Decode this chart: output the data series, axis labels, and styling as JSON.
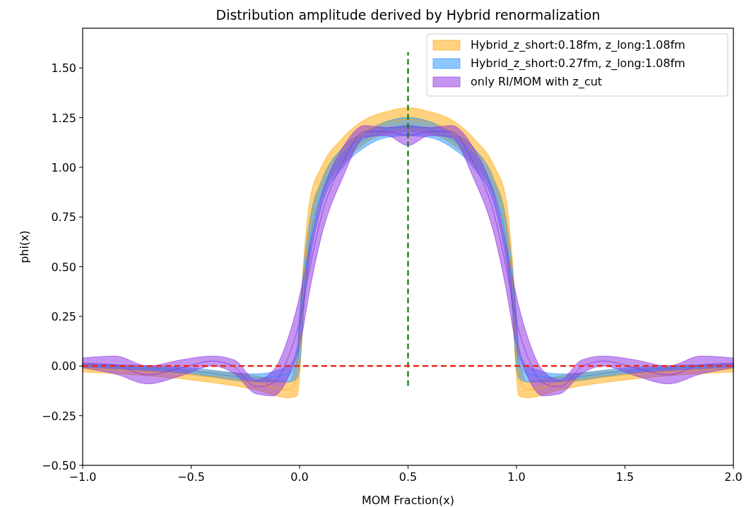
{
  "chart_data": {
    "type": "line",
    "title": "Distribution amplitude derived by Hybrid renormalization",
    "xlabel": "MOM Fraction(x)",
    "ylabel": "phi(x)",
    "xlim": [
      -1,
      2
    ],
    "ylim": [
      -0.5,
      1.7
    ],
    "xticks": [
      {
        "value": -1,
        "label": "−1.0"
      },
      {
        "value": -0.5,
        "label": "−0.5"
      },
      {
        "value": 0,
        "label": "0.0"
      },
      {
        "value": 0.5,
        "label": "0.5"
      },
      {
        "value": 1,
        "label": "1.0"
      },
      {
        "value": 1.5,
        "label": "1.5"
      },
      {
        "value": 2,
        "label": "2.0"
      }
    ],
    "yticks": [
      {
        "value": -0.5,
        "label": "−0.50"
      },
      {
        "value": -0.25,
        "label": "−0.25"
      },
      {
        "value": 0,
        "label": "0.00"
      },
      {
        "value": 0.25,
        "label": "0.25"
      },
      {
        "value": 0.5,
        "label": "0.50"
      },
      {
        "value": 0.75,
        "label": "0.75"
      },
      {
        "value": 1,
        "label": "1.00"
      },
      {
        "value": 1.25,
        "label": "1.25"
      },
      {
        "value": 1.5,
        "label": "1.50"
      }
    ],
    "legend": "top right",
    "grid": false,
    "ref_lines": [
      {
        "axis": "y",
        "value": 0,
        "color": "#f0281a",
        "line_style": "dashed"
      }
    ],
    "series": [
      {
        "name": "Hybrid_z_short:0.18fm, z_long:1.08fm",
        "color": "#ffa500",
        "x": [
          -1,
          -0.5,
          -0.2,
          -0.05,
          -0.01,
          0,
          0.02,
          0.05,
          0.1,
          0.2,
          0.3,
          0.4,
          0.5,
          0.6,
          0.7,
          0.8,
          0.9,
          0.95,
          0.98,
          1.0,
          1.01,
          1.05,
          1.2,
          1.5,
          2
        ],
        "values": [
          -0.01,
          -0.045,
          -0.085,
          -0.12,
          -0.05,
          0.075,
          0.425,
          0.725,
          0.925,
          1.085,
          1.18,
          1.225,
          1.24,
          1.225,
          1.18,
          1.085,
          0.925,
          0.725,
          0.425,
          0.075,
          -0.05,
          -0.12,
          -0.085,
          -0.045,
          -0.01
        ],
        "upper": [
          0.01,
          -0.02,
          -0.05,
          -0.08,
          0.05,
          0.2,
          0.55,
          0.85,
          1.0,
          1.15,
          1.24,
          1.28,
          1.3,
          1.28,
          1.24,
          1.15,
          1.0,
          0.85,
          0.55,
          0.2,
          0.05,
          -0.08,
          -0.05,
          -0.02,
          0.01
        ],
        "lower": [
          -0.03,
          -0.07,
          -0.12,
          -0.16,
          -0.15,
          -0.05,
          0.3,
          0.6,
          0.85,
          1.02,
          1.12,
          1.17,
          1.18,
          1.17,
          1.12,
          1.02,
          0.85,
          0.6,
          0.3,
          -0.05,
          -0.15,
          -0.16,
          -0.12,
          -0.07,
          -0.03
        ]
      },
      {
        "name": "Hybrid_z_short:0.27fm, z_long:1.08fm",
        "color": "#1e90ff",
        "x": [
          -1,
          -0.5,
          -0.2,
          -0.05,
          -0.01,
          0,
          0.02,
          0.05,
          0.1,
          0.2,
          0.3,
          0.4,
          0.5,
          0.6,
          0.7,
          0.8,
          0.9,
          0.95,
          0.98,
          1.0,
          1.01,
          1.05,
          1.2,
          1.5,
          2
        ],
        "values": [
          0,
          -0.025,
          -0.06,
          -0.04,
          0.02,
          0.125,
          0.4,
          0.65,
          0.865,
          1.05,
          1.14,
          1.19,
          1.205,
          1.19,
          1.14,
          1.05,
          0.865,
          0.65,
          0.4,
          0.125,
          0.02,
          -0.04,
          -0.06,
          -0.025,
          0
        ],
        "upper": [
          0.01,
          -0.01,
          -0.04,
          0.0,
          0.1,
          0.25,
          0.5,
          0.75,
          0.93,
          1.1,
          1.18,
          1.23,
          1.25,
          1.23,
          1.18,
          1.1,
          0.93,
          0.75,
          0.5,
          0.25,
          0.1,
          0.0,
          -0.04,
          -0.01,
          0.01
        ],
        "lower": [
          -0.01,
          -0.04,
          -0.08,
          -0.08,
          -0.06,
          0.0,
          0.3,
          0.55,
          0.8,
          1.0,
          1.1,
          1.15,
          1.16,
          1.15,
          1.1,
          1.0,
          0.8,
          0.55,
          0.3,
          0.0,
          -0.06,
          -0.08,
          -0.08,
          -0.04,
          -0.01
        ]
      },
      {
        "name": "only RI/MOM with z_cut",
        "color": "#8a2be2",
        "x": [
          -1,
          -0.85,
          -0.7,
          -0.55,
          -0.4,
          -0.3,
          -0.2,
          -0.12,
          -0.05,
          0,
          0.05,
          0.1,
          0.2,
          0.3,
          0.4,
          0.5,
          0.6,
          0.7,
          0.8,
          0.9,
          0.95,
          1.0,
          1.05,
          1.12,
          1.2,
          1.3,
          1.4,
          1.55,
          1.7,
          1.85,
          2
        ],
        "values": [
          0.015,
          0.005,
          -0.045,
          -0.01,
          0.025,
          -0.005,
          -0.105,
          -0.085,
          0.05,
          0.225,
          0.51,
          0.75,
          1.025,
          1.18,
          1.18,
          1.16,
          1.18,
          1.18,
          1.025,
          0.75,
          0.51,
          0.225,
          0.05,
          -0.085,
          -0.105,
          -0.005,
          0.025,
          -0.01,
          -0.045,
          0.005,
          0.015
        ],
        "upper": [
          0.04,
          0.05,
          0.0,
          0.03,
          0.05,
          0.03,
          -0.07,
          -0.02,
          0.15,
          0.35,
          0.62,
          0.85,
          1.1,
          1.21,
          1.2,
          1.21,
          1.2,
          1.21,
          1.1,
          0.85,
          0.62,
          0.35,
          0.15,
          -0.02,
          -0.07,
          0.03,
          0.05,
          0.03,
          0.0,
          0.05,
          0.04
        ],
        "lower": [
          -0.01,
          -0.04,
          -0.09,
          -0.05,
          0.0,
          -0.04,
          -0.14,
          -0.15,
          -0.05,
          0.1,
          0.4,
          0.65,
          0.95,
          1.15,
          1.16,
          1.11,
          1.16,
          1.15,
          0.95,
          0.65,
          0.4,
          0.1,
          -0.05,
          -0.15,
          -0.14,
          -0.04,
          0.0,
          -0.05,
          -0.09,
          -0.04,
          -0.01
        ]
      },
      {
        "color": "#008000",
        "line_style": "dashed",
        "x": [
          0.5,
          0.5
        ],
        "values": [
          -0.1,
          1.58
        ]
      }
    ]
  }
}
